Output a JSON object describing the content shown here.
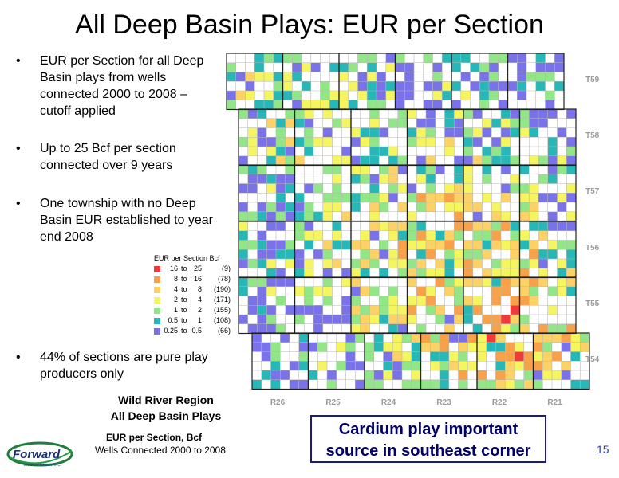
{
  "title": "All Deep Basin Plays: EUR per Section",
  "bullets": [
    "EUR per Section for all Deep Basin plays from wells connected 2000 to 2008 – cutoff applied",
    "Up to 25 Bcf per section connected over 9 years",
    "One township with no Deep Basin EUR established to year end 2008",
    "44% of sections are pure play producers only"
  ],
  "legend": {
    "title": "EUR per Section Bcf",
    "items": [
      {
        "from": "16",
        "to": "25",
        "count": "(9)",
        "color": "#f03a3a"
      },
      {
        "from": "8",
        "to": "16",
        "count": "(78)",
        "color": "#f7a14a"
      },
      {
        "from": "4",
        "to": "8",
        "count": "(190)",
        "color": "#fcd267"
      },
      {
        "from": "2",
        "to": "4",
        "count": "(171)",
        "color": "#f5f560"
      },
      {
        "from": "1",
        "to": "2",
        "count": "(155)",
        "color": "#93e687"
      },
      {
        "from": "0.5",
        "to": "1",
        "count": "(108)",
        "color": "#27b7b7"
      },
      {
        "from": "0.25",
        "to": "0.5",
        "count": "(66)",
        "color": "#7a72e8"
      }
    ]
  },
  "townships": [
    "T59",
    "T58",
    "T57",
    "T56",
    "T55",
    "T54"
  ],
  "ranges": [
    "R26",
    "R25",
    "R24",
    "R23",
    "R22",
    "R21"
  ],
  "region_title": [
    "Wild River Region",
    "All Deep Basin Plays"
  ],
  "eur_title": "EUR per Section, Bcf",
  "wells_text": "Wells Connected 2000 to 2008",
  "callout": [
    "Cardium play important",
    "source in southeast corner"
  ],
  "page_number": "15",
  "logo": {
    "text": "Forward",
    "subtext": "ENERGY GROUP INC."
  }
}
